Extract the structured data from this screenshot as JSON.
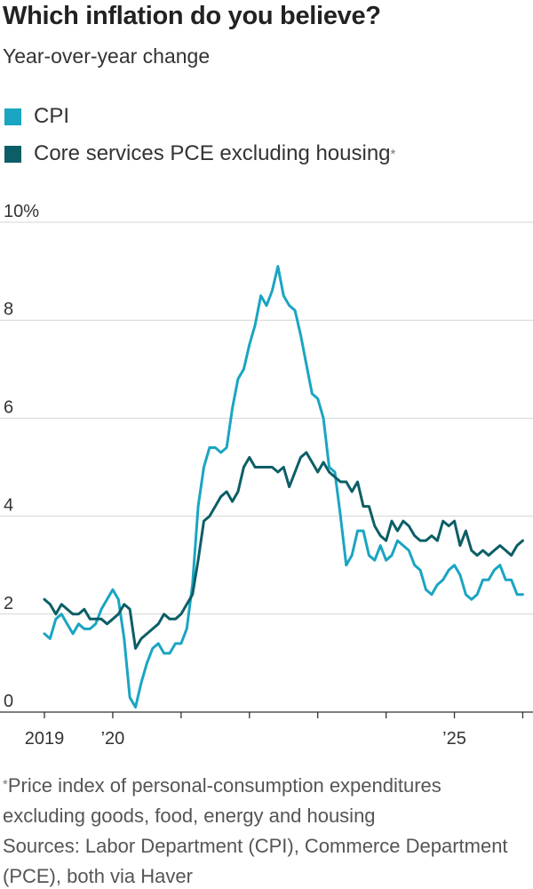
{
  "chart_data": {
    "type": "line",
    "title": "Which inflation do you believe?",
    "subtitle": "Year-over-year change",
    "legend_position": "top-left",
    "grid": true,
    "footnote": {
      "marker": "*",
      "text": "Price index of personal-consumption expenditures excluding goods, food, energy and housing"
    },
    "source": "Sources: Labor Department (CPI), Commerce Department (PCE), both via Haver",
    "xlim": [
      2018.35,
      2026.15
    ],
    "xticks": [
      2019,
      {
        "value": 2020,
        "label": "’20"
      },
      {
        "value": 2025,
        "label": "’25"
      }
    ],
    "xminorticks": [
      2021,
      2022,
      2023,
      2024,
      2026
    ],
    "ylim": [
      0,
      10
    ],
    "yticks": [
      0,
      2,
      4,
      6,
      8,
      {
        "value": 10,
        "label": "10%"
      }
    ],
    "x": [
      2019,
      2019.083,
      2019.167,
      2019.25,
      2019.333,
      2019.417,
      2019.5,
      2019.583,
      2019.667,
      2019.75,
      2019.833,
      2019.917,
      2020,
      2020.083,
      2020.167,
      2020.25,
      2020.333,
      2020.417,
      2020.5,
      2020.583,
      2020.667,
      2020.75,
      2020.833,
      2020.917,
      2021,
      2021.083,
      2021.167,
      2021.25,
      2021.333,
      2021.417,
      2021.5,
      2021.583,
      2021.667,
      2021.75,
      2021.833,
      2021.917,
      2022,
      2022.083,
      2022.167,
      2022.25,
      2022.333,
      2022.417,
      2022.5,
      2022.583,
      2022.667,
      2022.75,
      2022.833,
      2022.917,
      2023,
      2023.083,
      2023.167,
      2023.25,
      2023.333,
      2023.417,
      2023.5,
      2023.583,
      2023.667,
      2023.75,
      2023.833,
      2023.917,
      2024,
      2024.083,
      2024.167,
      2024.25,
      2024.333,
      2024.417,
      2024.5,
      2024.583,
      2024.667,
      2024.75,
      2024.833,
      2024.917,
      2025,
      2025.083,
      2025.167,
      2025.25,
      2025.333,
      2025.417,
      2025.5,
      2025.583,
      2025.667,
      2025.75,
      2025.833,
      2025.917,
      2026
    ],
    "series": [
      {
        "name": "CPI",
        "color": "#1aa5c2",
        "values": [
          1.6,
          1.5,
          1.9,
          2.0,
          1.8,
          1.6,
          1.8,
          1.7,
          1.7,
          1.8,
          2.1,
          2.3,
          2.5,
          2.3,
          1.5,
          0.3,
          0.1,
          0.6,
          1.0,
          1.3,
          1.4,
          1.2,
          1.2,
          1.4,
          1.4,
          1.7,
          2.6,
          4.2,
          5.0,
          5.4,
          5.4,
          5.3,
          5.4,
          6.2,
          6.8,
          7.0,
          7.5,
          7.9,
          8.5,
          8.3,
          8.6,
          9.1,
          8.5,
          8.3,
          8.2,
          7.7,
          7.1,
          6.5,
          6.4,
          6.0,
          5.0,
          4.9,
          4.0,
          3.0,
          3.2,
          3.7,
          3.7,
          3.2,
          3.1,
          3.4,
          3.1,
          3.2,
          3.5,
          3.4,
          3.3,
          3.0,
          2.9,
          2.5,
          2.4,
          2.6,
          2.7,
          2.9,
          3.0,
          2.8,
          2.4,
          2.3,
          2.4,
          2.7,
          2.7,
          2.9,
          3.0,
          2.7,
          2.7,
          2.4,
          2.4
        ]
      },
      {
        "name": "Core services PCE excluding housing",
        "note_marker": "*",
        "color": "#0c5e66",
        "values": [
          2.3,
          2.2,
          2.0,
          2.2,
          2.1,
          2.0,
          2.0,
          2.1,
          1.9,
          1.9,
          1.9,
          1.8,
          1.9,
          2.0,
          2.2,
          2.1,
          1.3,
          1.5,
          1.6,
          1.7,
          1.8,
          2.0,
          1.9,
          1.9,
          2.0,
          2.2,
          2.4,
          3.1,
          3.9,
          4.0,
          4.2,
          4.4,
          4.5,
          4.3,
          4.5,
          5.0,
          5.2,
          5.0,
          5.0,
          5.0,
          5.0,
          4.9,
          5.0,
          4.6,
          4.9,
          5.2,
          5.3,
          5.1,
          4.9,
          5.1,
          4.9,
          4.8,
          4.7,
          4.7,
          4.5,
          4.7,
          4.2,
          4.2,
          3.8,
          3.6,
          3.5,
          3.9,
          3.7,
          3.9,
          3.8,
          3.6,
          3.5,
          3.5,
          3.6,
          3.5,
          3.9,
          3.8,
          3.9,
          3.4,
          3.7,
          3.3,
          3.2,
          3.3,
          3.2,
          3.3,
          3.4,
          3.3,
          3.2,
          3.4,
          3.5
        ]
      }
    ]
  }
}
